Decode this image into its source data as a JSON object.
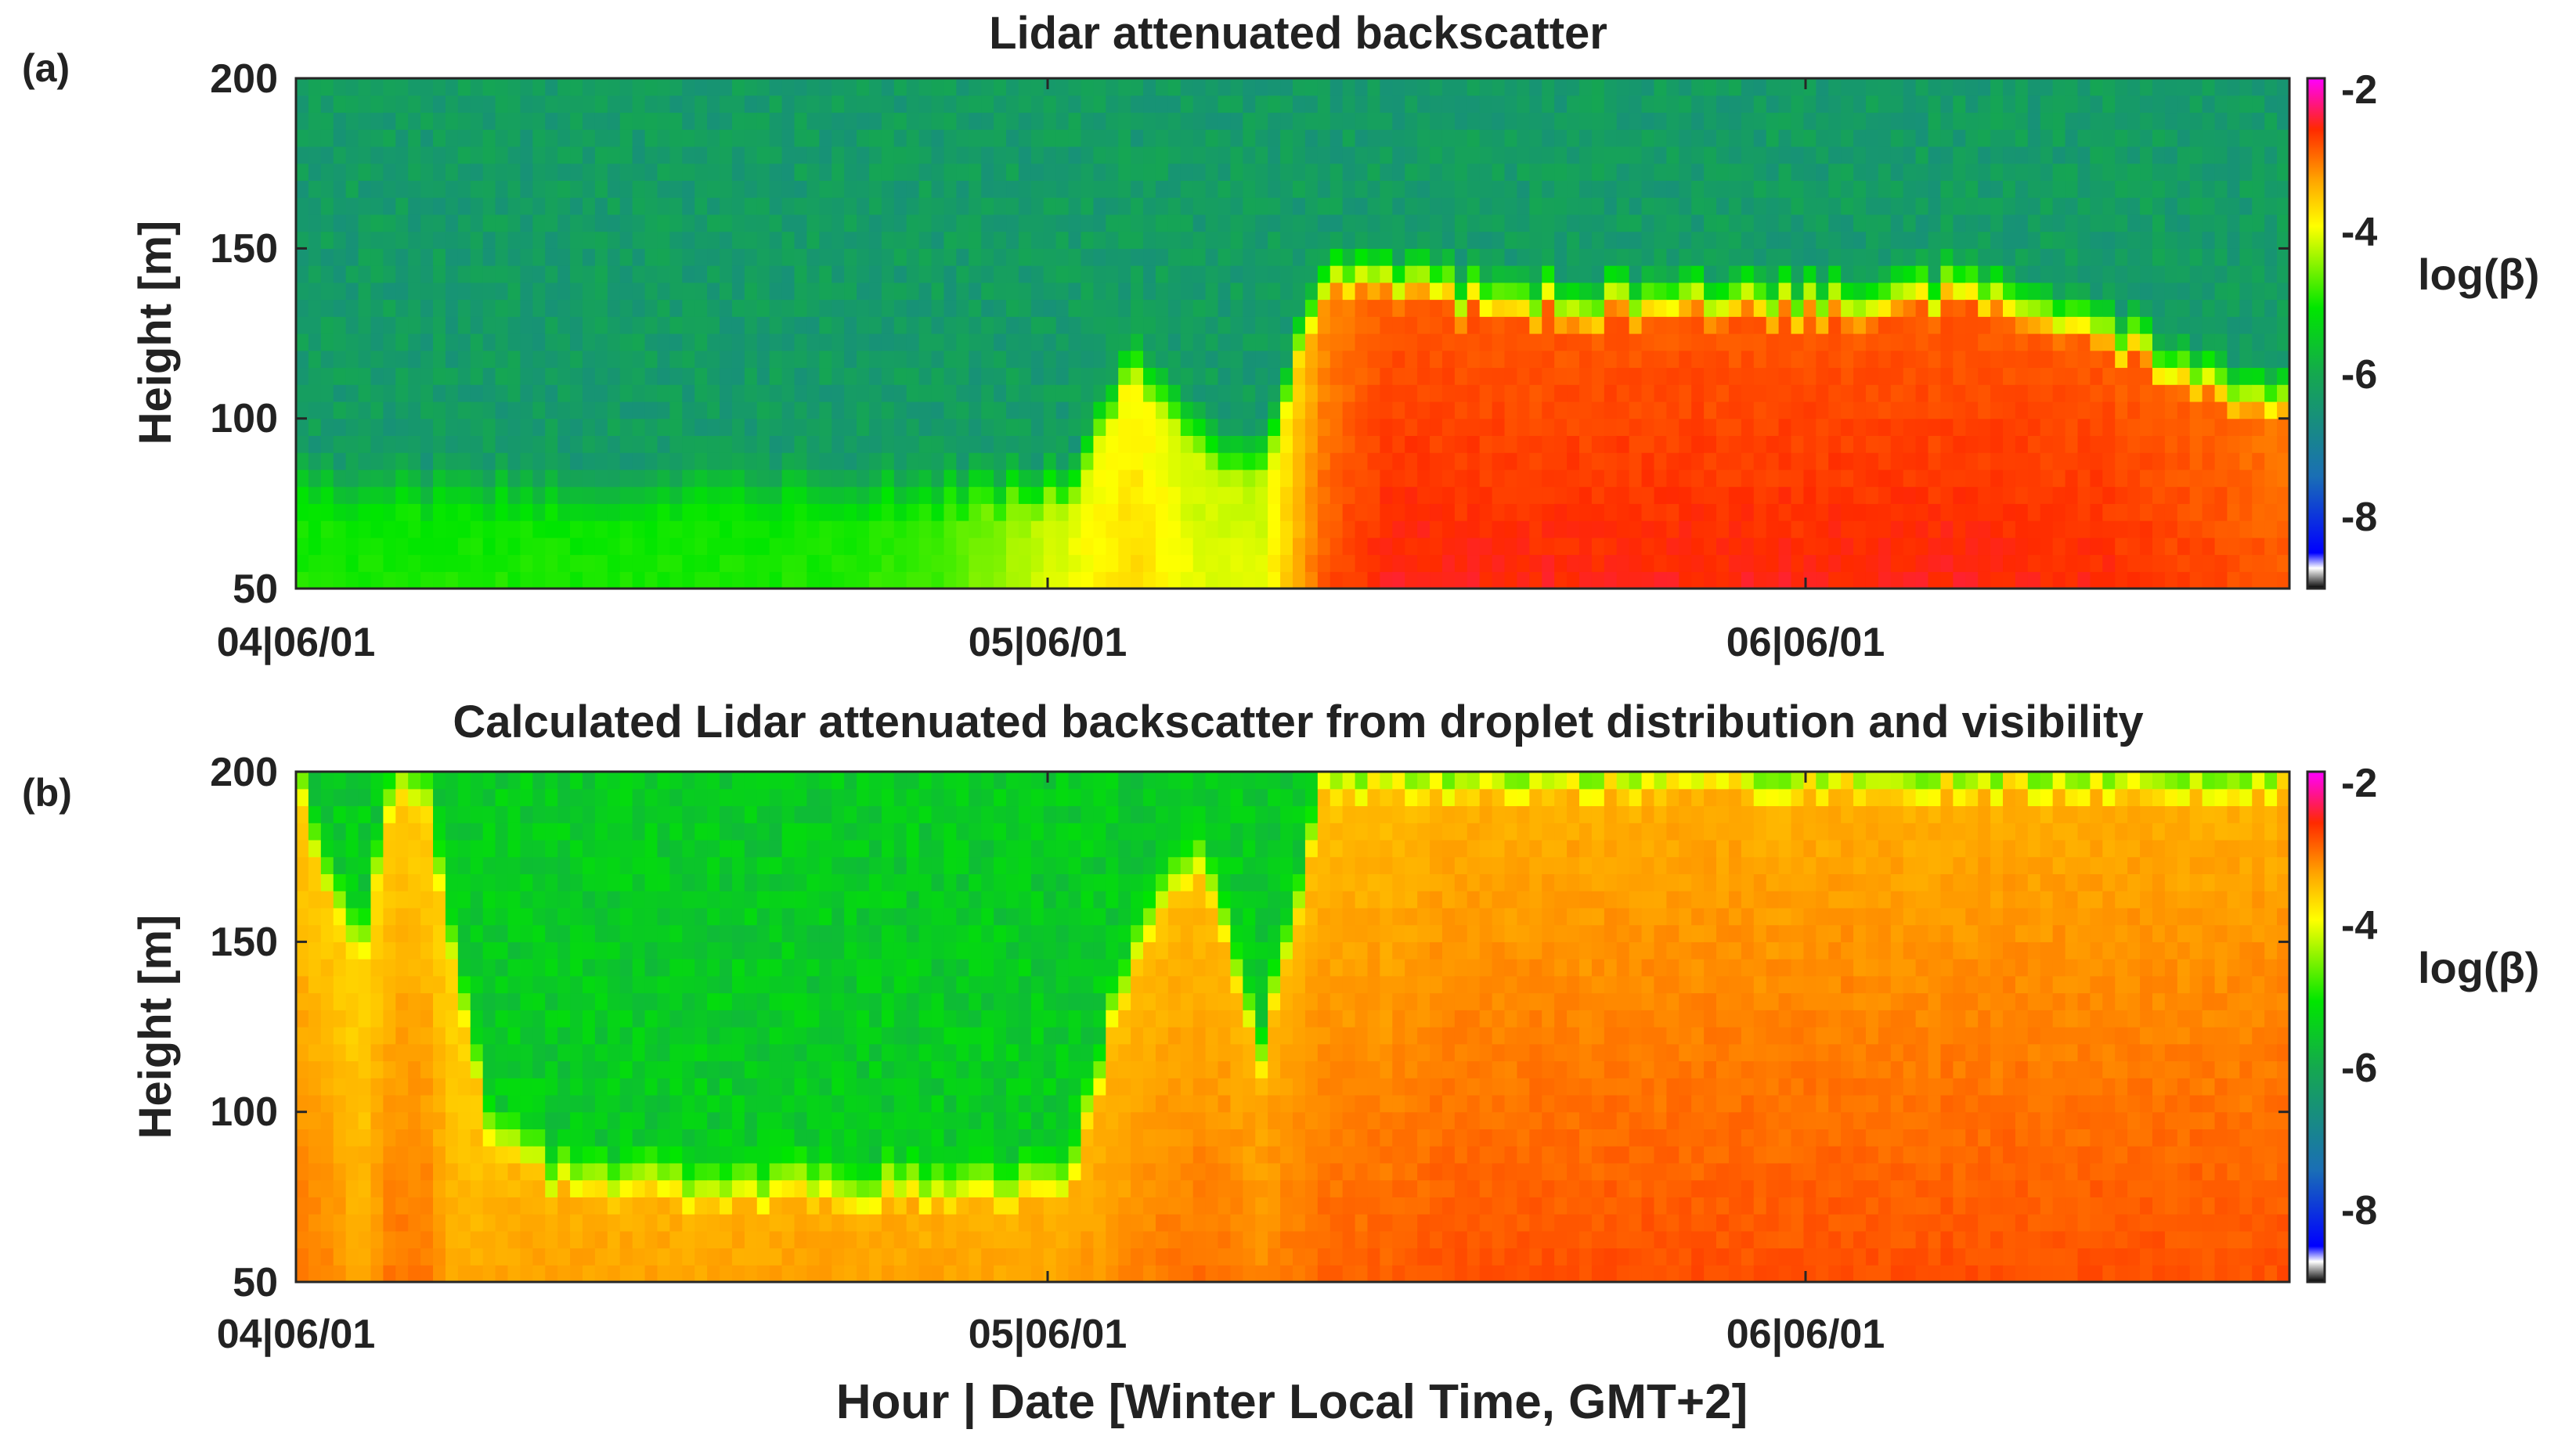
{
  "xlabel": "Hour | Date [Winter Local Time, GMT+2]",
  "chart_data": [
    {
      "type": "heatmap",
      "panel_label": "(a)",
      "title": "Lidar attenuated backscatter",
      "ylabel": "Height [m]",
      "xlabel": "",
      "x_tick_labels": [
        "04|06/01",
        "05|06/01",
        "06|06/01"
      ],
      "x_range": [
        "04|06/01 00:00",
        "06|06/01 14:00"
      ],
      "y_ticks": [
        50,
        100,
        150,
        200
      ],
      "ylim": [
        50,
        200
      ],
      "colorbar": {
        "label": "log(β)",
        "ticks": [
          -2,
          -4,
          -6,
          -8
        ],
        "range": [
          -9,
          -2
        ]
      },
      "grid": false,
      "cloud_layer": {
        "time_hours": [
          0,
          4,
          8,
          12,
          16,
          20,
          24,
          26,
          28,
          30,
          32,
          34,
          36,
          40,
          44,
          48,
          52,
          56,
          60,
          62
        ],
        "cloud_top_m": [
          82,
          80,
          80,
          80,
          80,
          80,
          82,
          118,
          95,
          88,
          145,
          142,
          138,
          136,
          136,
          136,
          140,
          128,
          112,
          108
        ],
        "core_value": [
          -5.2,
          -5.2,
          -5.2,
          -5.2,
          -5.2,
          -5.0,
          -4.2,
          -4.0,
          -4.3,
          -4.3,
          -3.3,
          -3.0,
          -3.0,
          -3.0,
          -3.0,
          -3.0,
          -3.0,
          -3.0,
          -3.1,
          -3.2
        ],
        "above_cloud_value": -6.4
      }
    },
    {
      "type": "heatmap",
      "panel_label": "(b)",
      "title": "Calculated Lidar attenuated backscatter from droplet distribution and visibility",
      "ylabel": "Height [m]",
      "xlabel": "Hour | Date [Winter Local Time, GMT+2]",
      "x_tick_labels": [
        "04|06/01",
        "05|06/01",
        "06|06/01"
      ],
      "x_range": [
        "04|06/01 00:00",
        "06|06/01 14:00"
      ],
      "y_ticks": [
        50,
        100,
        150,
        200
      ],
      "ylim": [
        50,
        200
      ],
      "colorbar": {
        "label": "log(β)",
        "ticks": [
          -2,
          -4,
          -6,
          -8
        ],
        "range": [
          -9,
          -2
        ]
      },
      "grid": false,
      "cloud_layer": {
        "time_hours": [
          0,
          1,
          2,
          3,
          4,
          5,
          6,
          8,
          12,
          16,
          20,
          24,
          26,
          28,
          30,
          32,
          34,
          36,
          40,
          48,
          56,
          62
        ],
        "cloud_top_m": [
          200,
          170,
          150,
          200,
          200,
          140,
          100,
          82,
          80,
          80,
          80,
          82,
          150,
          180,
          120,
          200,
          200,
          200,
          200,
          200,
          200,
          200
        ],
        "core_value": [
          -3.7,
          -3.7,
          -3.8,
          -3.7,
          -3.7,
          -3.8,
          -3.6,
          -3.5,
          -3.5,
          -3.5,
          -3.5,
          -3.5,
          -3.6,
          -3.6,
          -3.5,
          -3.6,
          -3.6,
          -3.5,
          -3.5,
          -3.5,
          -3.5,
          -3.5
        ],
        "above_cloud_value": -5.6
      }
    }
  ]
}
